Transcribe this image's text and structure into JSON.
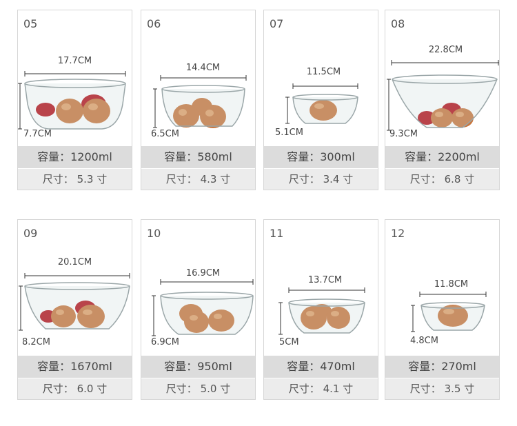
{
  "cards": [
    {
      "num": "05",
      "width": "17.7CM",
      "height": "7.7CM",
      "capacity": "容量：1200ml",
      "size": "尺寸：  5.3  寸"
    },
    {
      "num": "06",
      "width": "14.4CM",
      "height": "6.5CM",
      "capacity": "容量：580ml",
      "size": "尺寸：  4.3  寸"
    },
    {
      "num": "07",
      "width": "11.5CM",
      "height": "5.1CM",
      "capacity": "容量：300ml",
      "size": "尺寸：  3.4  寸"
    },
    {
      "num": "08",
      "width": "22.8CM",
      "height": "9.3CM",
      "capacity": "容量：2200ml",
      "size": "尺寸：  6.8  寸"
    },
    {
      "num": "09",
      "width": "20.1CM",
      "height": "8.2CM",
      "capacity": "容量：1670ml",
      "size": "尺寸：  6.0  寸"
    },
    {
      "num": "10",
      "width": "16.9CM",
      "height": "6.9CM",
      "capacity": "容量：950ml",
      "size": "尺寸：  5.0  寸"
    },
    {
      "num": "11",
      "width": "13.7CM",
      "height": "5CM",
      "capacity": "容量：470ml",
      "size": "尺寸：  4.1  寸"
    },
    {
      "num": "12",
      "width": "11.8CM",
      "height": "4.8CM",
      "capacity": "容量：270ml",
      "size": "尺寸：  3.5  寸"
    }
  ],
  "colors": {
    "egg": "#c9773f",
    "egg_hi": "#e2a06a",
    "apple": "#b5121b",
    "glass": "#9aa6a8",
    "band": "#dcdcdc"
  },
  "icons": {
    "bowl": "glass-bowl-icon",
    "egg": "egg-icon",
    "apple": "apple-icon"
  }
}
